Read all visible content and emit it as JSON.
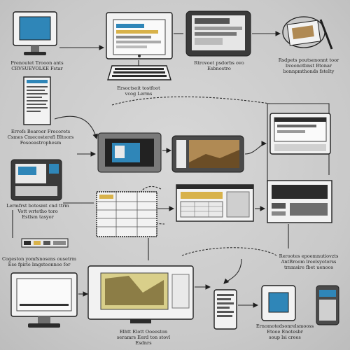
{
  "colors": {
    "background": "#cfcfcf",
    "outline": "#1e1e1e",
    "screen_blue": "#2f86b8",
    "accent_gold": "#d8b24a",
    "sepia": "#b08a54"
  },
  "icons": [
    "desktop-monitor-icon",
    "laptop-icon",
    "tablet-icon",
    "stylus-tablet-icon",
    "keyboard-icon",
    "document-icon",
    "handheld-device-icon",
    "video-player-icon",
    "photo-tablet-icon",
    "browser-window-icon",
    "spreadsheet-panel-icon",
    "server-panel-icon",
    "phone-icon",
    "smartwatch-icon"
  ],
  "captions": {
    "desktop": "Prenoutet Trooon ants\nCRVSUEVOLKE Fstar",
    "keyboard": "Ersoctsoit tostfoot\nvcog Lerms",
    "tablet_top": "Rtrovoet psdorbs ovo\nEsbnostro",
    "stylus": "Rsdpets poutsenonnt toor\nbveonotbnst Btonar\nbonnpmthonds fstelty",
    "document": "Errofs Bearoer Frecorets\nCsmes Cmecosterefi Bltoors\nFosoeastrophesm",
    "left_device": "Lermfrst botesmt cnd ttrm\nVott wrtetho toro\nEstlsm tasyor",
    "bottom_left": "Cogeston yomfsnosens ousetrm\nEse fpirle lmgsteonnoe for",
    "bottom_right": "Rerootes epoemnutiovzts\nAntBroom lreelsyotorss\ntrnmsire fbet uenoos",
    "bottom_center": "Elhtt Elott Ooeeston\nseramrs Eerd ton stovl\nEsdnrs",
    "phone": "Ernomotedsonrelsmooss\nEtooe Enotesbr\nsoup lsi crees"
  }
}
